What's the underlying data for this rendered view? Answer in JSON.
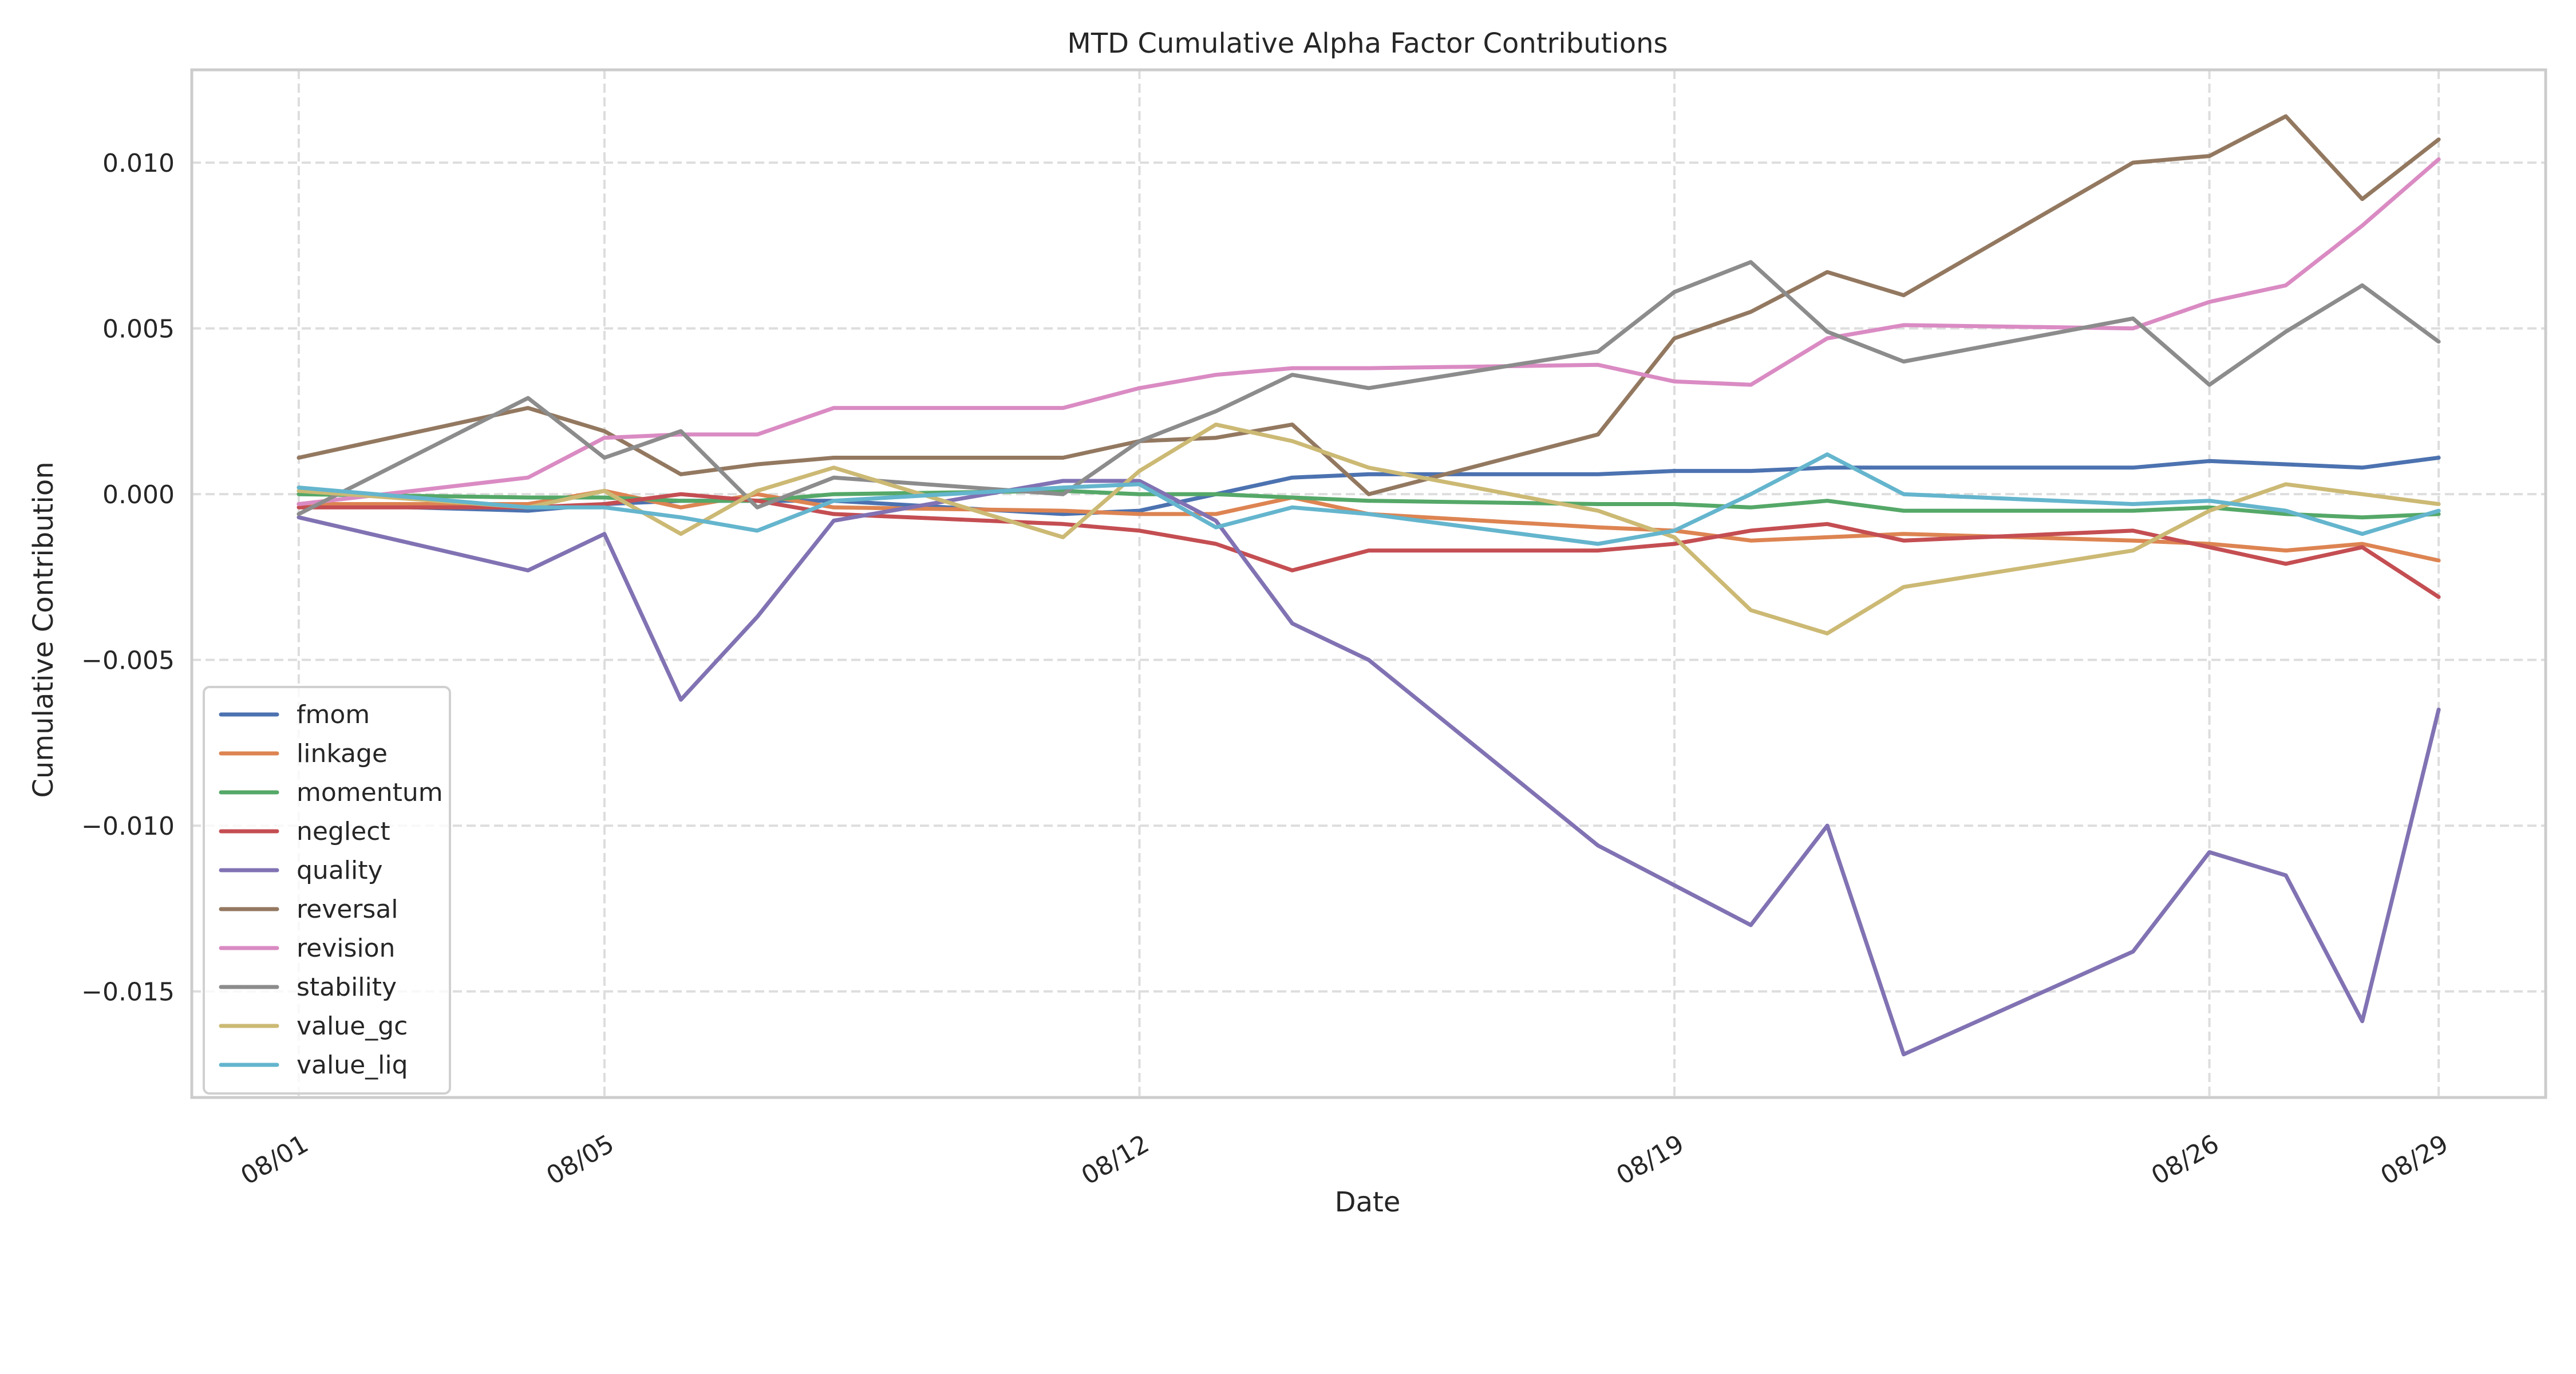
{
  "chart_data": {
    "type": "line",
    "title": "MTD Cumulative Alpha Factor Contributions",
    "xlabel": "Date",
    "ylabel": "Cumulative Contribution",
    "x": [
      "08/01",
      "08/04",
      "08/05",
      "08/06",
      "08/07",
      "08/08",
      "08/11",
      "08/12",
      "08/13",
      "08/14",
      "08/15",
      "08/18",
      "08/19",
      "08/20",
      "08/21",
      "08/22",
      "08/25",
      "08/26",
      "08/27",
      "08/28",
      "08/29"
    ],
    "x_day": [
      1,
      4,
      5,
      6,
      7,
      8,
      11,
      12,
      13,
      14,
      15,
      18,
      19,
      20,
      21,
      22,
      25,
      26,
      27,
      28,
      29
    ],
    "xticks": [
      {
        "label": "08/01",
        "day": 1
      },
      {
        "label": "08/05",
        "day": 5
      },
      {
        "label": "08/12",
        "day": 12
      },
      {
        "label": "08/19",
        "day": 19
      },
      {
        "label": "08/26",
        "day": 26
      },
      {
        "label": "08/29",
        "day": 29
      }
    ],
    "xlim": [
      -0.4,
      30.4
    ],
    "yticks": [
      0.01,
      0.005,
      0.0,
      -0.005,
      -0.01,
      -0.015
    ],
    "ytick_labels": [
      "0.010",
      "0.005",
      "0.000",
      "−0.005",
      "−0.010",
      "−0.015"
    ],
    "ylim": [
      -0.0182,
      0.0128
    ],
    "grid": true,
    "legend_position": "lower-left",
    "series": [
      {
        "name": "fmom",
        "color": "#4c72b0",
        "values": [
          -0.0003,
          -0.0005,
          -0.0003,
          -0.0002,
          -0.0002,
          -0.0002,
          -0.0006,
          -0.0005,
          0.0,
          0.0005,
          0.0006,
          0.0006,
          0.0007,
          0.0007,
          0.0008,
          0.0008,
          0.0008,
          0.001,
          0.0009,
          0.0008,
          0.0011
        ]
      },
      {
        "name": "linkage",
        "color": "#dd8452",
        "values": [
          -0.0003,
          -0.0003,
          0.0001,
          -0.0004,
          0.0,
          -0.0004,
          -0.0005,
          -0.0006,
          -0.0006,
          -0.0001,
          -0.0006,
          -0.001,
          -0.0011,
          -0.0014,
          -0.0013,
          -0.0012,
          -0.0014,
          -0.0015,
          -0.0017,
          -0.0015,
          -0.002
        ]
      },
      {
        "name": "momentum",
        "color": "#55a868",
        "values": [
          0.0,
          -0.0001,
          -0.0001,
          -0.0002,
          -0.0002,
          0.0,
          0.0001,
          0.0,
          0.0,
          -0.0001,
          -0.0002,
          -0.0003,
          -0.0003,
          -0.0004,
          -0.0002,
          -0.0005,
          -0.0005,
          -0.0004,
          -0.0006,
          -0.0007,
          -0.0006
        ]
      },
      {
        "name": "neglect",
        "color": "#c44e52",
        "values": [
          -0.0004,
          -0.0004,
          -0.0003,
          0.0,
          -0.0002,
          -0.0006,
          -0.0009,
          -0.0011,
          -0.0015,
          -0.0023,
          -0.0017,
          -0.0017,
          -0.0015,
          -0.0011,
          -0.0009,
          -0.0014,
          -0.0011,
          -0.0016,
          -0.0021,
          -0.0016,
          -0.0031
        ]
      },
      {
        "name": "quality",
        "color": "#8172b3",
        "values": [
          -0.0007,
          -0.0023,
          -0.0012,
          -0.0062,
          -0.0037,
          -0.0008,
          0.0004,
          0.0004,
          -0.0008,
          -0.0039,
          -0.005,
          -0.0106,
          -0.0118,
          -0.013,
          -0.01,
          -0.0169,
          -0.0138,
          -0.0108,
          -0.0115,
          -0.0159,
          -0.0065
        ]
      },
      {
        "name": "reversal",
        "color": "#937860",
        "values": [
          0.0011,
          0.0026,
          0.0019,
          0.0006,
          0.0009,
          0.0011,
          0.0011,
          0.0016,
          0.0017,
          0.0021,
          0.0,
          0.0018,
          0.0047,
          0.0055,
          0.0067,
          0.006,
          0.01,
          0.0102,
          0.0114,
          0.0089,
          0.0107
        ]
      },
      {
        "name": "revision",
        "color": "#da8bc3",
        "values": [
          -0.0003,
          0.0005,
          0.0017,
          0.0018,
          0.0018,
          0.0026,
          0.0026,
          0.0032,
          0.0036,
          0.0038,
          0.0038,
          0.0039,
          0.0034,
          0.0033,
          0.0047,
          0.0051,
          0.005,
          0.0058,
          0.0063,
          0.0081,
          0.0101
        ]
      },
      {
        "name": "stability",
        "color": "#8c8c8c",
        "values": [
          -0.0006,
          0.0029,
          0.0011,
          0.0019,
          -0.0004,
          0.0005,
          0.0,
          0.0016,
          0.0025,
          0.0036,
          0.0032,
          0.0043,
          0.0061,
          0.007,
          0.0049,
          0.004,
          0.0053,
          0.0033,
          0.0049,
          0.0063,
          0.0046
        ]
      },
      {
        "name": "value_gc",
        "color": "#ccb974",
        "values": [
          0.0001,
          -0.0004,
          0.0001,
          -0.0012,
          0.0001,
          0.0008,
          -0.0013,
          0.0007,
          0.0021,
          0.0016,
          0.0008,
          -0.0005,
          -0.0013,
          -0.0035,
          -0.0042,
          -0.0028,
          -0.0017,
          -0.0005,
          0.0003,
          0.0,
          -0.0003
        ]
      },
      {
        "name": "value_liq",
        "color": "#64b5cd",
        "values": [
          0.0002,
          -0.0004,
          -0.0004,
          -0.0007,
          -0.0011,
          -0.0002,
          0.0002,
          0.0003,
          -0.001,
          -0.0004,
          -0.0006,
          -0.0015,
          -0.0011,
          0.0,
          0.0012,
          0.0,
          -0.0003,
          -0.0002,
          -0.0005,
          -0.0012,
          -0.0005
        ]
      }
    ]
  }
}
